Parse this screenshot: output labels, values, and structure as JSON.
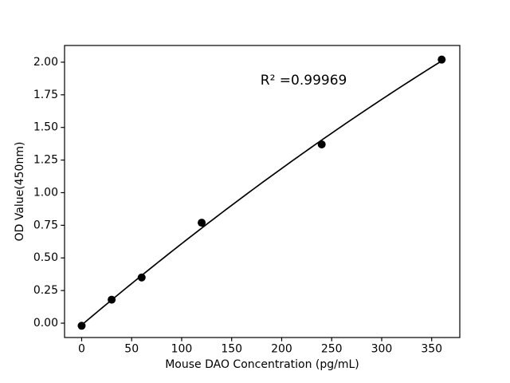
{
  "chart_data": {
    "type": "scatter",
    "title": "",
    "xlabel": "Mouse DAO Concentration (pg/mL)",
    "ylabel": "OD Value(450nm)",
    "annotation": {
      "text": "R² =0.99969",
      "x": 222,
      "y": 1.86
    },
    "series": [
      {
        "name": "standard-points",
        "x": [
          0,
          30,
          60,
          120,
          240,
          360
        ],
        "y": [
          -0.02,
          0.18,
          0.35,
          0.77,
          1.37,
          2.02
        ]
      }
    ],
    "fit": {
      "type": "quadratic",
      "x_range": [
        0,
        360
      ]
    },
    "axes": {
      "xlim": [
        -17.1,
        378.1
      ],
      "ylim": [
        -0.11,
        2.128
      ],
      "xticks": [
        0,
        50,
        100,
        150,
        200,
        250,
        300,
        350
      ],
      "yticks": [
        0.0,
        0.25,
        0.5,
        0.75,
        1.0,
        1.25,
        1.5,
        1.75,
        2.0
      ],
      "ytick_decimals": 2,
      "grid": false,
      "legend": "none"
    },
    "colors": {
      "marker": "#000000",
      "line": "#000000",
      "spine": "#000000",
      "text": "#000000",
      "background": "#ffffff"
    }
  }
}
